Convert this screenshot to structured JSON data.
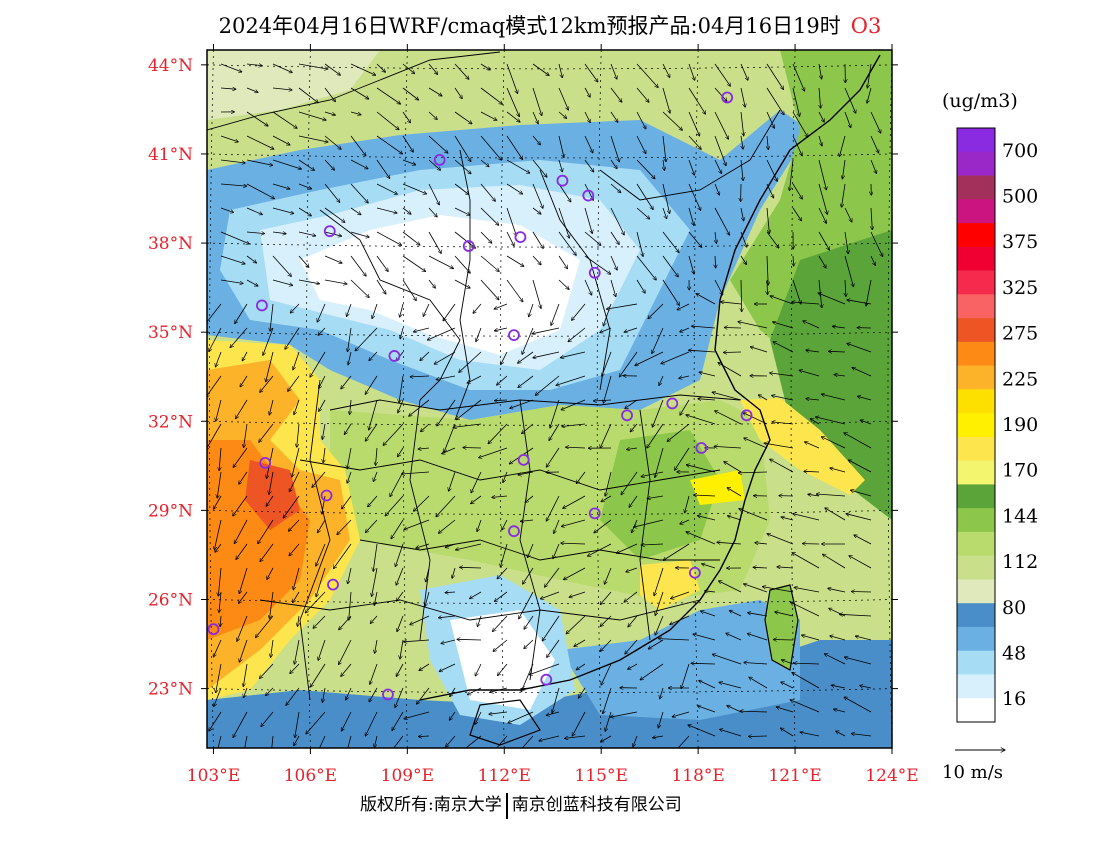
{
  "header": {
    "title": "2024年04月16日WRF/cmaq模式12km预报产品:04月16日19时",
    "variable": "O3"
  },
  "map": {
    "lon_range": [
      102.8,
      124.0
    ],
    "lat_range": [
      21.0,
      44.5
    ],
    "lon_ticks": [
      "103°E",
      "106°E",
      "109°E",
      "112°E",
      "115°E",
      "118°E",
      "121°E",
      "124°E"
    ],
    "lat_ticks": [
      "44°N",
      "41°N",
      "38°N",
      "35°N",
      "32°N",
      "29°N",
      "26°N",
      "23°N"
    ],
    "tick_color": "#e8202a",
    "city_marker_color": "#8a2be2",
    "cities": [
      {
        "lon": 118.9,
        "lat": 42.9
      },
      {
        "lon": 110.0,
        "lat": 40.8
      },
      {
        "lon": 113.8,
        "lat": 40.1
      },
      {
        "lon": 114.6,
        "lat": 39.6
      },
      {
        "lon": 106.6,
        "lat": 38.4
      },
      {
        "lon": 110.9,
        "lat": 37.9
      },
      {
        "lon": 112.5,
        "lat": 38.2
      },
      {
        "lon": 114.8,
        "lat": 37.0
      },
      {
        "lon": 104.5,
        "lat": 35.9
      },
      {
        "lon": 112.3,
        "lat": 34.9
      },
      {
        "lon": 108.6,
        "lat": 34.2
      },
      {
        "lon": 115.8,
        "lat": 32.2
      },
      {
        "lon": 117.2,
        "lat": 32.6
      },
      {
        "lon": 119.5,
        "lat": 32.2
      },
      {
        "lon": 104.6,
        "lat": 30.6
      },
      {
        "lon": 112.6,
        "lat": 30.7
      },
      {
        "lon": 118.1,
        "lat": 31.1
      },
      {
        "lon": 106.5,
        "lat": 29.5
      },
      {
        "lon": 114.8,
        "lat": 28.9
      },
      {
        "lon": 112.3,
        "lat": 28.3
      },
      {
        "lon": 106.7,
        "lat": 26.5
      },
      {
        "lon": 117.9,
        "lat": 26.9
      },
      {
        "lon": 103.0,
        "lat": 25.0
      },
      {
        "lon": 108.4,
        "lat": 22.8
      },
      {
        "lon": 113.3,
        "lat": 23.3
      }
    ]
  },
  "legend": {
    "unit": "(ug/m3)",
    "colors": [
      "#ffffff",
      "#d8f0fb",
      "#a7dcf5",
      "#6bb0e3",
      "#4a8ec9",
      "#dfe9bc",
      "#cadf8a",
      "#b9da6d",
      "#8cc64a",
      "#5ba43a",
      "#f4f56e",
      "#fde64d",
      "#fff000",
      "#fee000",
      "#fcb32a",
      "#fc8a14",
      "#ee5525",
      "#f96363",
      "#f62a4c",
      "#f00032",
      "#ff0000",
      "#cc1480",
      "#a3305a",
      "#9a28c8",
      "#8a2be2"
    ],
    "labels": [
      "16",
      "48",
      "80",
      "112",
      "144",
      "170",
      "190",
      "225",
      "275",
      "325",
      "375",
      "500",
      "700"
    ],
    "label_colors_note": ""
  },
  "vector_scale": {
    "label": "10 m/s"
  },
  "footer": {
    "left": "版权所有:南京大学",
    "right": "南京创蓝科技有限公司"
  }
}
